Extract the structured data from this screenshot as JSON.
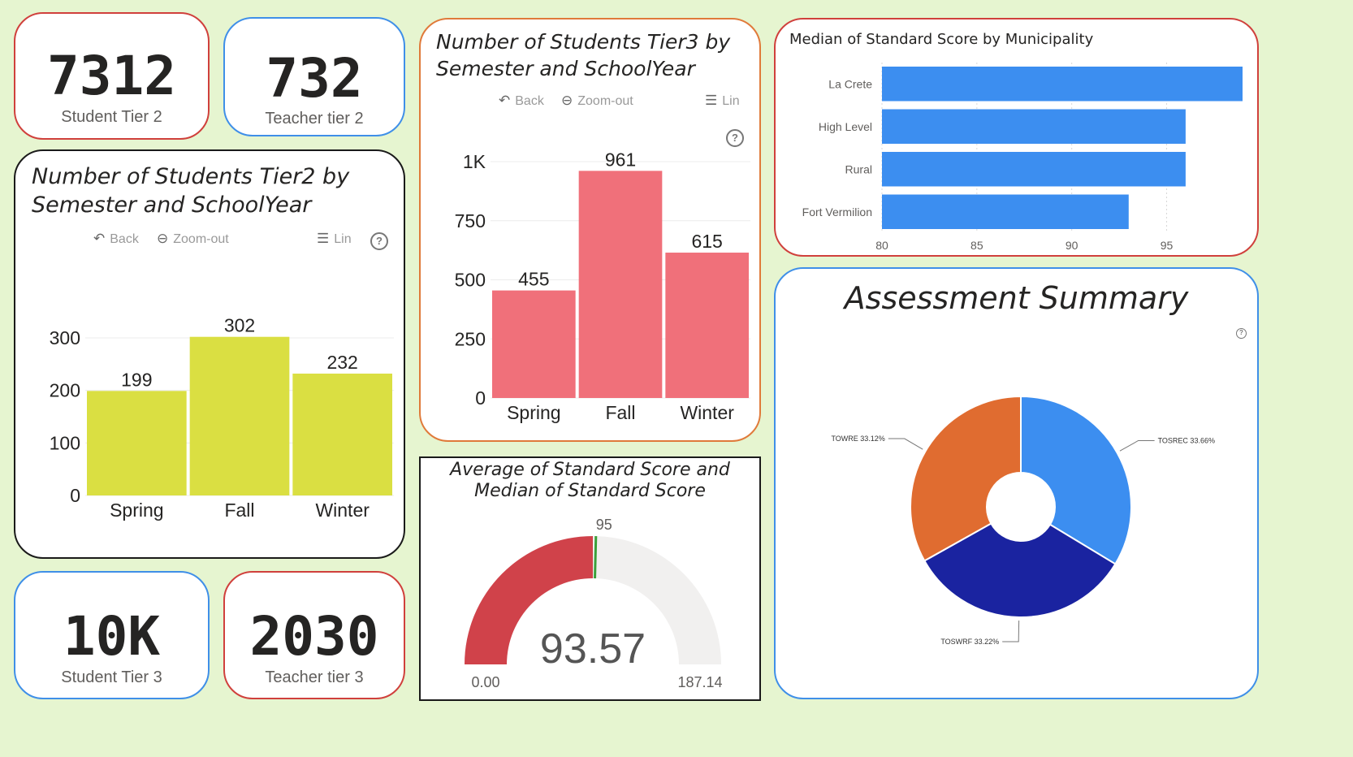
{
  "kpis": {
    "student_tier2": {
      "value": "7312",
      "label": "Student Tier 2"
    },
    "teacher_tier2": {
      "value": "732",
      "label": "Teacher tier 2"
    },
    "student_tier3": {
      "value": "10K",
      "label": "Student Tier 3"
    },
    "teacher_tier3": {
      "value": "2030",
      "label": "Teacher tier 3"
    }
  },
  "toolbar": {
    "back": "Back",
    "zoom_out": "Zoom-out",
    "lin": "Lin",
    "help": "?"
  },
  "chart_data": [
    {
      "id": "tier2",
      "type": "bar",
      "title_line1": "Number of Students Tier2 by",
      "title_line2": "Semester and SchoolYear",
      "categories": [
        "Spring",
        "Fall",
        "Winter"
      ],
      "values": [
        199,
        302,
        232
      ],
      "ylim": [
        0,
        300
      ],
      "yticks": [
        0,
        100,
        200,
        300
      ],
      "ytick_labels": [
        "0",
        "100",
        "200",
        "300"
      ],
      "color": "#dadf42",
      "grid": true
    },
    {
      "id": "tier3",
      "type": "bar",
      "title_line1": "Number of Students Tier3 by",
      "title_line2": "Semester and SchoolYear",
      "categories": [
        "Spring",
        "Fall",
        "Winter"
      ],
      "values": [
        455,
        961,
        615
      ],
      "ylim": [
        0,
        1000
      ],
      "yticks": [
        0,
        250,
        500,
        750,
        1000
      ],
      "ytick_labels": [
        "0",
        "250",
        "500",
        "750",
        "1K"
      ],
      "color": "#f0707a",
      "grid": true
    },
    {
      "id": "municipality",
      "type": "bar",
      "orientation": "horizontal",
      "title": "Median of Standard Score by Municipality",
      "categories": [
        "La Crete",
        "High Level",
        "Rural",
        "Fort Vermilion"
      ],
      "values": [
        99,
        96,
        96,
        93
      ],
      "xlim": [
        80,
        99
      ],
      "xticks": [
        80,
        85,
        90,
        95
      ],
      "color": "#3c8ef0",
      "grid": true
    },
    {
      "id": "gauge",
      "type": "gauge",
      "title_line1": "Average of Standard Score and",
      "title_line2": "Median of Standard Score",
      "value": 93.57,
      "value_label": "93.57",
      "min": 0,
      "min_label": "0.00",
      "max": 187.14,
      "max_label": "187.14",
      "target": 95,
      "target_label": "95",
      "fill_color": "#d0424a",
      "track_color": "#f1f0ef",
      "target_color": "#3aa03a"
    },
    {
      "id": "assessment",
      "type": "pie",
      "title": "Assessment Summary",
      "donut": true,
      "slices": [
        {
          "label": "TOSREC 33.66%",
          "value": 33.66,
          "color": "#3c8ef0"
        },
        {
          "label": "TOSWRF 33.22%",
          "value": 33.22,
          "color": "#1a23a0"
        },
        {
          "label": "TOWRE 33.12%",
          "value": 33.12,
          "color": "#e06c30"
        }
      ]
    }
  ]
}
